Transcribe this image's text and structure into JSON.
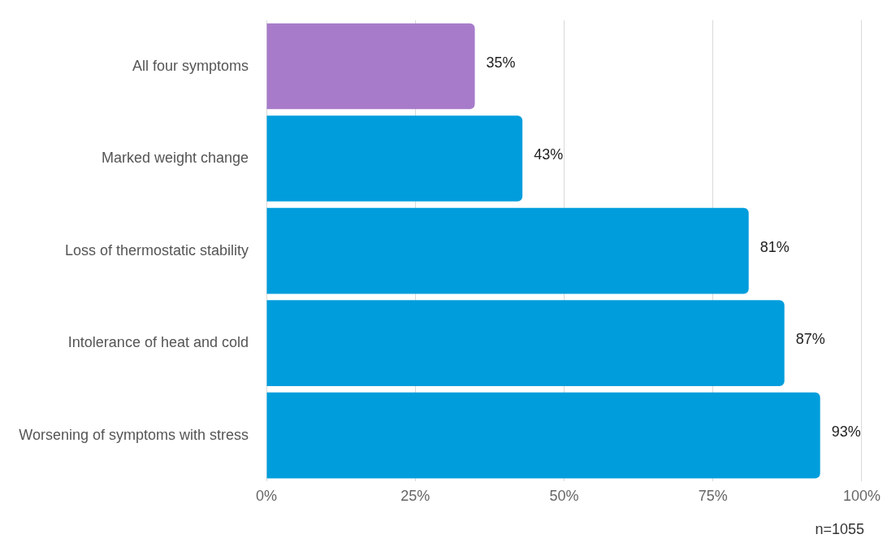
{
  "chart_data": {
    "type": "bar",
    "orientation": "horizontal",
    "categories": [
      "All four symptoms",
      "Marked weight change",
      "Loss of thermostatic stability",
      "Intolerance of heat and cold",
      "Worsening of symptoms with stress"
    ],
    "values": [
      35,
      43,
      81,
      87,
      93
    ],
    "colors": [
      "#a77bca",
      "#009ddc",
      "#009ddc",
      "#009ddc",
      "#009ddc"
    ],
    "value_labels": [
      "35%",
      "43%",
      "81%",
      "87%",
      "93%"
    ],
    "xlim": [
      0,
      100
    ],
    "xticks": [
      {
        "value": 0,
        "label": "0%"
      },
      {
        "value": 25,
        "label": "25%"
      },
      {
        "value": 50,
        "label": "50%"
      },
      {
        "value": 75,
        "label": "75%"
      },
      {
        "value": 100,
        "label": "100%"
      }
    ],
    "grid": "x",
    "legend": false,
    "annotations": [
      "n=1055"
    ]
  }
}
